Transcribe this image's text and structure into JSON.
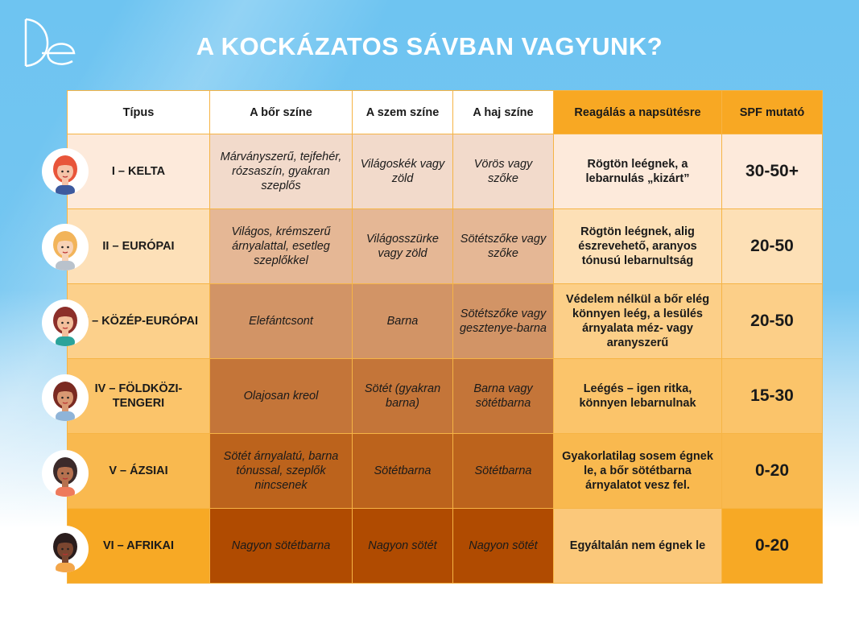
{
  "title": "A KOCKÁZATOS SÁVBAN VAGYUNK?",
  "logo_text": "De",
  "headers": [
    "Típus",
    "A bőr színe",
    "A szem színe",
    "A haj színe",
    "Reagálás a napsütésre",
    "SPF mutató"
  ],
  "rows": [
    {
      "type": "I – KELTA",
      "skin": "Márványszerű, tejfehér, rózsaszín, gyakran szeplős",
      "eye": "Világoskék vagy zöld",
      "hair": "Vörös vagy szőke",
      "reaction": "Rögtön leégnek, a lebarnulás „kizárt”",
      "spf": "30-50+",
      "colors": {
        "type": "#fdeadb",
        "cells": "#f2dacb",
        "reaction": "#fdeadb",
        "spf": "#fdeadb"
      },
      "avatar": {
        "hair": "#e8553a",
        "skin": "#f6c3a8",
        "shirt": "#3d5a9e"
      }
    },
    {
      "type": "II – EURÓPAI",
      "skin": "Világos, krémszerű árnyalattal, esetleg szeplőkkel",
      "eye": "Világosszürke vagy zöld",
      "hair": "Sötétszőke vagy szőke",
      "reaction": "Rögtön leégnek, alig észrevehető, aranyos tónusú lebarnultság",
      "spf": "20-50",
      "colors": {
        "type": "#fde0b8",
        "cells": "#e5b795",
        "reaction": "#fde0b6",
        "spf": "#fde0b6"
      },
      "avatar": {
        "hair": "#f2b45a",
        "skin": "#f8d2b6",
        "shirt": "#b9c2cc"
      }
    },
    {
      "type": "III – KÖZÉP-EURÓPAI",
      "skin": "Elefántcsont",
      "eye": "Barna",
      "hair": "Sötétszőke vagy gesztenye-barna",
      "reaction": "Védelem nélkül a bőr elég könnyen leég, a lesülés árnyalata méz- vagy aranyszerű",
      "spf": "20-50",
      "colors": {
        "type": "#fcd08b",
        "cells": "#d29466",
        "reaction": "#fccf88",
        "spf": "#fccf88"
      },
      "avatar": {
        "hair": "#8c2f2a",
        "skin": "#f3bf9c",
        "shirt": "#2aa39a"
      }
    },
    {
      "type": "IV – FÖLDKÖZI-TENGERI",
      "skin": "Olajosan kreol",
      "eye": "Sötét (gyakran barna)",
      "hair": "Barna vagy sötétbarna",
      "reaction": "Leégés – igen ritka, könnyen lebarnulnak",
      "spf": "15-30",
      "colors": {
        "type": "#fbc46a",
        "cells": "#c47539",
        "reaction": "#fbc46a",
        "spf": "#fbc46a"
      },
      "avatar": {
        "hair": "#7a2a22",
        "skin": "#d99873",
        "shirt": "#8fb4d8"
      }
    },
    {
      "type": "V – ÁZSIAI",
      "skin": "Sötét árnyalatú, barna tónussal, szeplők nincsenek",
      "eye": "Sötétbarna",
      "hair": "Sötétbarna",
      "reaction": "Gyakorlatilag sosem égnek le,  a bőr sötétbarna árnyalatot vesz fel.",
      "spf": "0-20",
      "colors": {
        "type": "#f9b94f",
        "cells": "#bc631c",
        "reaction": "#f9b94f",
        "spf": "#f9b94f"
      },
      "avatar": {
        "hair": "#3b2a2a",
        "skin": "#b5714f",
        "shirt": "#ee7a5c"
      }
    },
    {
      "type": "VI – AFRIKAI",
      "skin": "Nagyon sötétbarna",
      "eye": "Nagyon sötét",
      "hair": "Nagyon sötét",
      "reaction": "Egyáltalán nem égnek le",
      "spf": "0-20",
      "colors": {
        "type": "#f7a925",
        "cells": "#b04b01",
        "reaction": "#fbc87a",
        "spf": "#f7a925"
      },
      "avatar": {
        "hair": "#2a1d1d",
        "skin": "#7a4630",
        "shirt": "#f3a64a"
      }
    }
  ]
}
